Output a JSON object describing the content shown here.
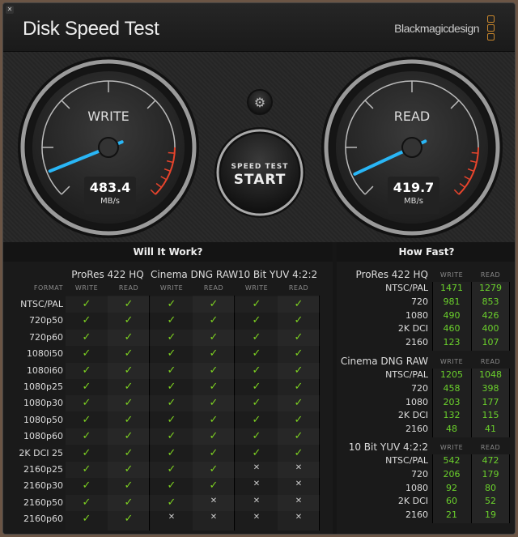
{
  "window": {
    "close_icon": "close-icon",
    "title": "Disk Speed Test",
    "brand": "Blackmagicdesign",
    "brand_color": "#c8862c"
  },
  "gauges": {
    "write": {
      "label": "WRITE",
      "value": "483.4",
      "unit": "MB/s"
    },
    "read": {
      "label": "READ",
      "value": "419.7",
      "unit": "MB/s"
    },
    "needle_color": "#29b6f6",
    "redline_color": "#e8442c"
  },
  "settings_icon": "gear-icon",
  "start_button": {
    "line1": "SPEED TEST",
    "line2": "START"
  },
  "will_it_work": {
    "title": "Will It Work?",
    "format_label": "FORMAT",
    "groups": [
      "ProRes 422 HQ",
      "Cinema DNG RAW",
      "10 Bit YUV 4:2:2"
    ],
    "sub": [
      "WRITE",
      "READ"
    ],
    "check_color": "#7ed321",
    "rows": [
      {
        "format": "NTSC/PAL",
        "ok": [
          true,
          true,
          true,
          true,
          true,
          true
        ]
      },
      {
        "format": "720p50",
        "ok": [
          true,
          true,
          true,
          true,
          true,
          true
        ]
      },
      {
        "format": "720p60",
        "ok": [
          true,
          true,
          true,
          true,
          true,
          true
        ]
      },
      {
        "format": "1080i50",
        "ok": [
          true,
          true,
          true,
          true,
          true,
          true
        ]
      },
      {
        "format": "1080i60",
        "ok": [
          true,
          true,
          true,
          true,
          true,
          true
        ]
      },
      {
        "format": "1080p25",
        "ok": [
          true,
          true,
          true,
          true,
          true,
          true
        ]
      },
      {
        "format": "1080p30",
        "ok": [
          true,
          true,
          true,
          true,
          true,
          true
        ]
      },
      {
        "format": "1080p50",
        "ok": [
          true,
          true,
          true,
          true,
          true,
          true
        ]
      },
      {
        "format": "1080p60",
        "ok": [
          true,
          true,
          true,
          true,
          true,
          true
        ]
      },
      {
        "format": "2K DCI 25",
        "ok": [
          true,
          true,
          true,
          true,
          true,
          true
        ]
      },
      {
        "format": "2160p25",
        "ok": [
          true,
          true,
          true,
          true,
          false,
          false
        ]
      },
      {
        "format": "2160p30",
        "ok": [
          true,
          true,
          true,
          true,
          false,
          false
        ]
      },
      {
        "format": "2160p50",
        "ok": [
          true,
          true,
          true,
          false,
          false,
          false
        ]
      },
      {
        "format": "2160p60",
        "ok": [
          true,
          true,
          false,
          false,
          false,
          false
        ]
      }
    ]
  },
  "how_fast": {
    "title": "How Fast?",
    "sub": [
      "WRITE",
      "READ"
    ],
    "sections": [
      {
        "name": "ProRes 422 HQ",
        "rows": [
          {
            "format": "NTSC/PAL",
            "write": "1471",
            "read": "1279"
          },
          {
            "format": "720",
            "write": "981",
            "read": "853"
          },
          {
            "format": "1080",
            "write": "490",
            "read": "426"
          },
          {
            "format": "2K DCI",
            "write": "460",
            "read": "400"
          },
          {
            "format": "2160",
            "write": "123",
            "read": "107"
          }
        ]
      },
      {
        "name": "Cinema DNG RAW",
        "rows": [
          {
            "format": "NTSC/PAL",
            "write": "1205",
            "read": "1048"
          },
          {
            "format": "720",
            "write": "458",
            "read": "398"
          },
          {
            "format": "1080",
            "write": "203",
            "read": "177"
          },
          {
            "format": "2K DCI",
            "write": "132",
            "read": "115"
          },
          {
            "format": "2160",
            "write": "48",
            "read": "41"
          }
        ]
      },
      {
        "name": "10 Bit YUV 4:2:2",
        "rows": [
          {
            "format": "NTSC/PAL",
            "write": "542",
            "read": "472"
          },
          {
            "format": "720",
            "write": "206",
            "read": "179"
          },
          {
            "format": "1080",
            "write": "92",
            "read": "80"
          },
          {
            "format": "2K DCI",
            "write": "60",
            "read": "52"
          },
          {
            "format": "2160",
            "write": "21",
            "read": "19"
          }
        ]
      }
    ]
  }
}
